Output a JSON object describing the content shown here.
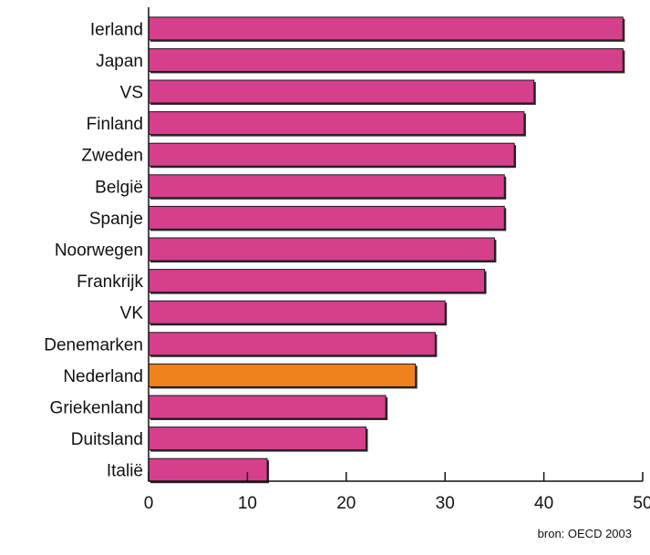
{
  "chart_data": {
    "type": "bar",
    "orientation": "horizontal",
    "categories": [
      "Ierland",
      "Japan",
      "VS",
      "Finland",
      "Zweden",
      "België",
      "Spanje",
      "Noorwegen",
      "Frankrijk",
      "VK",
      "Denemarken",
      "Nederland",
      "Griekenland",
      "Duitsland",
      "Italië"
    ],
    "values": [
      48,
      48,
      39,
      38,
      37,
      36,
      36,
      35,
      34,
      30,
      29,
      27,
      24,
      22,
      12
    ],
    "highlight": [
      "Nederland"
    ],
    "xlim": [
      0,
      50
    ],
    "x_ticks": [
      0,
      10,
      20,
      30,
      40,
      50
    ],
    "title": "",
    "xlabel": "",
    "ylabel": "",
    "grid": false,
    "colors": {
      "bar": "#d63f8c",
      "highlight": "#f0821e",
      "outline": "#1a1a1a",
      "axis": "#111111"
    }
  },
  "source": "bron: OECD 2003"
}
